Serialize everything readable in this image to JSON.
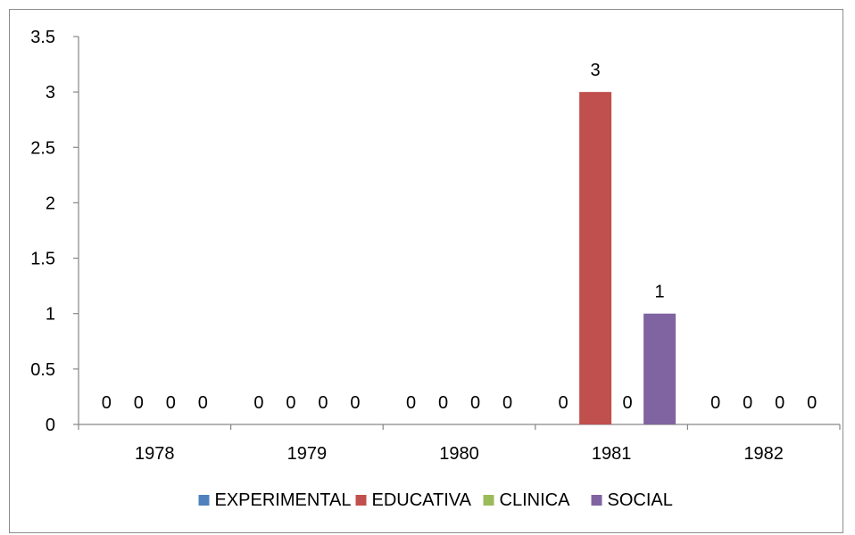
{
  "chart_data": {
    "type": "bar",
    "categories": [
      "1978",
      "1979",
      "1980",
      "1981",
      "1982"
    ],
    "series": [
      {
        "name": "EXPERIMENTAL",
        "color": "#4f81bd",
        "values": [
          0,
          0,
          0,
          0,
          0
        ]
      },
      {
        "name": "EDUCATIVA",
        "color": "#c0504d",
        "values": [
          0,
          0,
          0,
          3,
          0
        ]
      },
      {
        "name": "CLINICA",
        "color": "#9bbb59",
        "values": [
          0,
          0,
          0,
          0,
          0
        ]
      },
      {
        "name": "SOCIAL",
        "color": "#8064a2",
        "values": [
          0,
          0,
          0,
          1,
          0
        ]
      }
    ],
    "yticks": [
      "0",
      "0.5",
      "1",
      "1.5",
      "2",
      "2.5",
      "3",
      "3.5"
    ],
    "ylim": [
      0,
      3.5
    ],
    "ystep": 0.5,
    "data_labels": true,
    "grid": false,
    "legend_position": "bottom"
  }
}
